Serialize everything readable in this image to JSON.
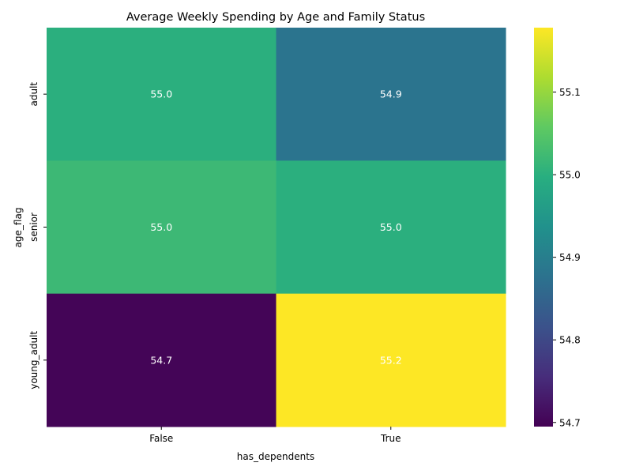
{
  "chart_data": {
    "type": "heatmap",
    "title": "Average Weekly Spending by Age and Family Status",
    "xlabel": "has_dependents",
    "ylabel": "age_flag",
    "x_categories": [
      "False",
      "True"
    ],
    "y_categories": [
      "adult",
      "senior",
      "young_adult"
    ],
    "values": [
      [
        55.0,
        54.88
      ],
      [
        55.02,
        55.0
      ],
      [
        54.7,
        55.18
      ]
    ],
    "annotations": [
      [
        "55.0",
        "54.9"
      ],
      [
        "55.0",
        "55.0"
      ],
      [
        "54.7",
        "55.2"
      ]
    ],
    "colormap": "viridis",
    "colorbar": {
      "range": [
        54.695,
        55.178
      ],
      "ticks": [
        54.7,
        54.8,
        54.9,
        55.0,
        55.1
      ],
      "tick_labels": [
        "54.7",
        "54.8",
        "54.9",
        "55.0",
        "55.1"
      ]
    },
    "annotation_color": "#ffffff"
  }
}
